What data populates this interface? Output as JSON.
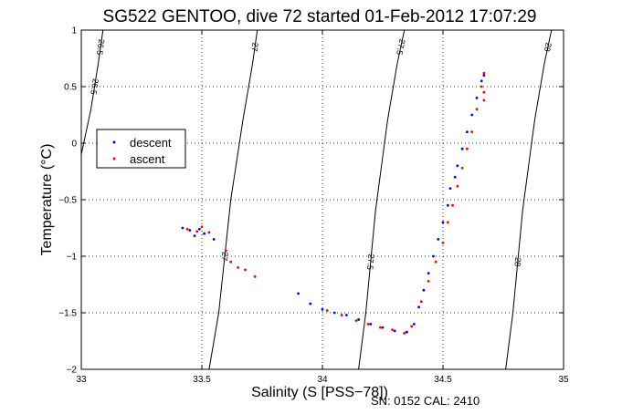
{
  "chart_data": {
    "type": "scatter",
    "title": "SG522 GENTOO, dive 72 started 01-Feb-2012 17:07:29",
    "xlabel": "Salinity (S [PSS−78])",
    "ylabel": "Temperature (°C)",
    "xlim": [
      33,
      35
    ],
    "ylim": [
      -2,
      1
    ],
    "xticks": [
      "33",
      "33.5",
      "34",
      "34.5",
      "35"
    ],
    "yticks": [
      "1",
      "0.5",
      "0",
      "−0.5",
      "−1",
      "−1.5",
      "−2"
    ],
    "grid": true,
    "legend_position": "upper-left",
    "footer": "SN: 0152  CAL: 2410",
    "series": [
      {
        "name": "descent",
        "color": "#0000ff",
        "points": [
          [
            33.42,
            -0.75
          ],
          [
            33.45,
            -0.77
          ],
          [
            33.47,
            -0.82
          ],
          [
            33.49,
            -0.76
          ],
          [
            33.51,
            -0.8
          ],
          [
            33.55,
            -0.85
          ],
          [
            33.9,
            -1.33
          ],
          [
            33.95,
            -1.42
          ],
          [
            34.0,
            -1.47
          ],
          [
            34.05,
            -1.5
          ],
          [
            34.1,
            -1.52
          ],
          [
            34.15,
            -1.56
          ],
          [
            34.2,
            -1.6
          ],
          [
            34.25,
            -1.63
          ],
          [
            34.3,
            -1.66
          ],
          [
            34.35,
            -1.67
          ],
          [
            34.38,
            -1.6
          ],
          [
            34.4,
            -1.45
          ],
          [
            34.42,
            -1.3
          ],
          [
            34.44,
            -1.15
          ],
          [
            34.46,
            -1.0
          ],
          [
            34.48,
            -0.85
          ],
          [
            34.5,
            -0.7
          ],
          [
            34.52,
            -0.55
          ],
          [
            34.53,
            -0.4
          ],
          [
            34.55,
            -0.3
          ],
          [
            34.56,
            -0.2
          ],
          [
            34.58,
            -0.05
          ],
          [
            34.6,
            0.1
          ],
          [
            34.62,
            0.25
          ],
          [
            34.64,
            0.4
          ],
          [
            34.66,
            0.55
          ],
          [
            34.67,
            0.6
          ]
        ]
      },
      {
        "name": "ascent",
        "color": "#ff0000",
        "points": [
          [
            33.44,
            -0.76
          ],
          [
            33.48,
            -0.78
          ],
          [
            33.5,
            -0.74
          ],
          [
            33.53,
            -0.79
          ],
          [
            33.6,
            -0.95
          ],
          [
            33.62,
            -1.05
          ],
          [
            33.65,
            -1.1
          ],
          [
            33.68,
            -1.12
          ],
          [
            33.72,
            -1.18
          ],
          [
            34.02,
            -1.48
          ],
          [
            34.08,
            -1.52
          ],
          [
            34.14,
            -1.57
          ],
          [
            34.19,
            -1.6
          ],
          [
            34.24,
            -1.63
          ],
          [
            34.29,
            -1.65
          ],
          [
            34.34,
            -1.68
          ],
          [
            34.37,
            -1.62
          ],
          [
            34.41,
            -1.4
          ],
          [
            34.44,
            -1.22
          ],
          [
            34.47,
            -1.05
          ],
          [
            34.5,
            -0.88
          ],
          [
            34.52,
            -0.7
          ],
          [
            34.54,
            -0.55
          ],
          [
            34.56,
            -0.38
          ],
          [
            34.58,
            -0.22
          ],
          [
            34.6,
            -0.05
          ],
          [
            34.62,
            0.1
          ],
          [
            34.64,
            0.3
          ],
          [
            34.66,
            0.5
          ],
          [
            34.67,
            0.62
          ],
          [
            34.67,
            0.45
          ],
          [
            34.67,
            0.38
          ]
        ]
      }
    ],
    "isopycnals": [
      {
        "label": "26.5",
        "points": [
          [
            33.0,
            -0.1
          ],
          [
            33.04,
            0.3
          ],
          [
            33.07,
            0.7
          ],
          [
            33.09,
            1.0
          ]
        ]
      },
      {
        "label": "27",
        "points": [
          [
            33.53,
            -2.0
          ],
          [
            33.57,
            -1.5
          ],
          [
            33.62,
            -0.5
          ],
          [
            33.67,
            0.2
          ],
          [
            33.71,
            0.7
          ],
          [
            33.73,
            1.0
          ]
        ]
      },
      {
        "label": "27.5",
        "points": [
          [
            34.15,
            -2.0
          ],
          [
            34.18,
            -1.5
          ],
          [
            34.22,
            -0.6
          ],
          [
            34.27,
            0.2
          ],
          [
            34.31,
            0.7
          ],
          [
            34.34,
            1.0
          ]
        ]
      },
      {
        "label": "28",
        "points": [
          [
            34.76,
            -2.0
          ],
          [
            34.79,
            -1.5
          ],
          [
            34.83,
            -0.6
          ],
          [
            34.88,
            0.2
          ],
          [
            34.92,
            0.7
          ],
          [
            34.95,
            1.0
          ]
        ]
      }
    ]
  }
}
